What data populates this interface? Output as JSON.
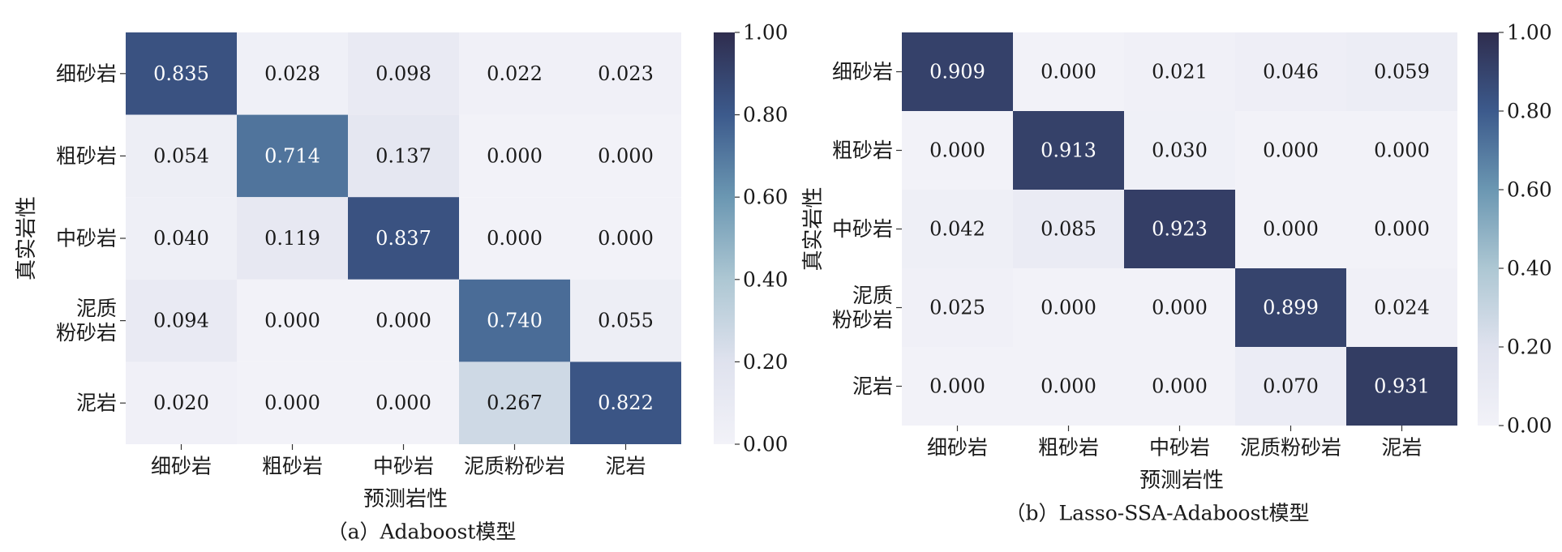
{
  "chart_data": [
    {
      "type": "heatmap",
      "caption": "（a）Adaboost模型",
      "xlabel": "预测岩性",
      "ylabel": "真实岩性",
      "x_categories": [
        "细砂岩",
        "粗砂岩",
        "中砂岩",
        "泥质粉砂岩",
        "泥岩"
      ],
      "y_categories": [
        [
          "细砂岩"
        ],
        [
          "粗砂岩"
        ],
        [
          "中砂岩"
        ],
        [
          "泥质",
          "粉砂岩"
        ],
        [
          "泥岩"
        ]
      ],
      "values": [
        [
          0.835,
          0.028,
          0.098,
          0.022,
          0.023
        ],
        [
          0.054,
          0.714,
          0.137,
          0.0,
          0.0
        ],
        [
          0.04,
          0.119,
          0.837,
          0.0,
          0.0
        ],
        [
          0.094,
          0.0,
          0.0,
          0.74,
          0.055
        ],
        [
          0.02,
          0.0,
          0.0,
          0.267,
          0.822
        ]
      ],
      "colorbar": {
        "range": [
          0,
          1
        ],
        "ticks": [
          "0.00",
          "0.20",
          "0.40",
          "0.60",
          "0.80",
          "1.00"
        ]
      }
    },
    {
      "type": "heatmap",
      "caption": "（b）Lasso-SSA-Adaboost模型",
      "xlabel": "预测岩性",
      "ylabel": "真实岩性",
      "x_categories": [
        "细砂岩",
        "粗砂岩",
        "中砂岩",
        "泥质粉砂岩",
        "泥岩"
      ],
      "y_categories": [
        [
          "细砂岩"
        ],
        [
          "粗砂岩"
        ],
        [
          "中砂岩"
        ],
        [
          "泥质",
          "粉砂岩"
        ],
        [
          "泥岩"
        ]
      ],
      "values": [
        [
          0.909,
          0.0,
          0.021,
          0.046,
          0.059
        ],
        [
          0.0,
          0.913,
          0.03,
          0.0,
          0.0
        ],
        [
          0.042,
          0.085,
          0.923,
          0.0,
          0.0
        ],
        [
          0.025,
          0.0,
          0.0,
          0.899,
          0.024
        ],
        [
          0.0,
          0.0,
          0.0,
          0.07,
          0.931
        ]
      ],
      "colorbar": {
        "range": [
          0,
          1
        ],
        "ticks": [
          "0.00",
          "0.20",
          "0.40",
          "0.60",
          "0.80",
          "1.00"
        ]
      }
    }
  ]
}
